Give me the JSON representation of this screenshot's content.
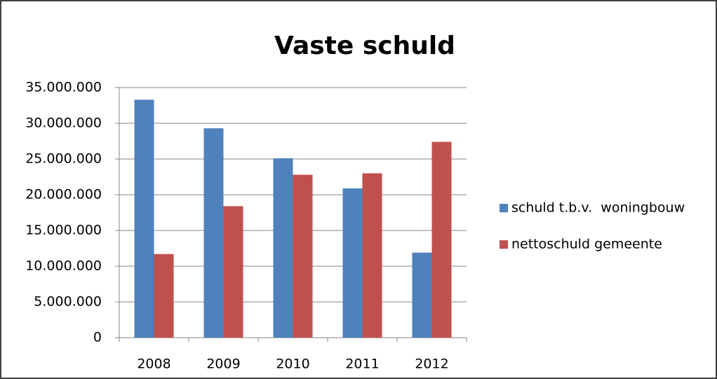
{
  "chart_data": {
    "type": "bar",
    "title": "Vaste schuld",
    "categories": [
      "2008",
      "2009",
      "2010",
      "2011",
      "2012"
    ],
    "series": [
      {
        "name": "schuld t.b.v.  woningbouw",
        "color": "#4f81bd",
        "values": [
          33300000,
          29300000,
          25100000,
          20900000,
          11900000
        ]
      },
      {
        "name": "nettoschuld gemeente",
        "color": "#c0504d",
        "values": [
          11700000,
          18400000,
          22800000,
          23000000,
          27400000
        ]
      }
    ],
    "ylim": [
      0,
      35000000
    ],
    "yticks": [
      0,
      {
        "value": 5000000,
        "label": "5.000.000"
      },
      {
        "value": 10000000,
        "label": "10.000.000"
      },
      {
        "value": 15000000,
        "label": "15.000.000"
      },
      {
        "value": 20000000,
        "label": "20.000.000"
      },
      {
        "value": 25000000,
        "label": "25.000.000"
      },
      {
        "value": 30000000,
        "label": "30.000.000"
      },
      {
        "value": 35000000,
        "label": "35.000.000"
      }
    ],
    "grid": true,
    "legend": "right"
  }
}
